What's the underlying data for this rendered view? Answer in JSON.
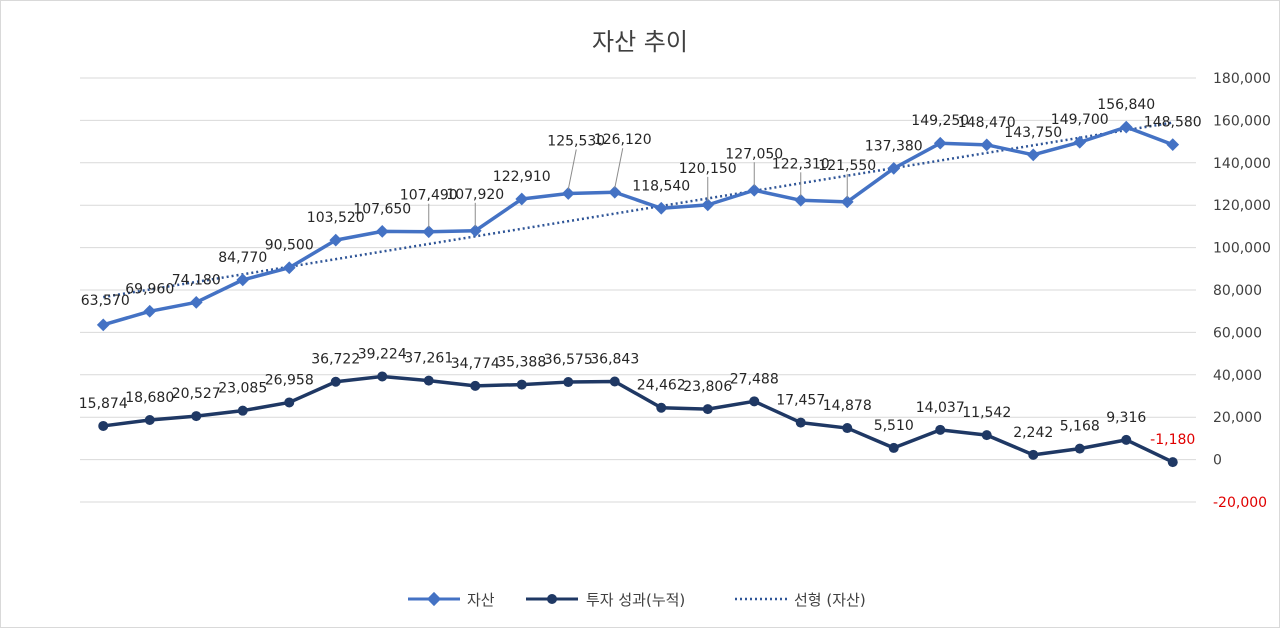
{
  "chart_data": {
    "type": "line",
    "title": "자산 추이",
    "ylim": [
      -20000,
      180000
    ],
    "y_ticks": [
      180000,
      160000,
      140000,
      120000,
      100000,
      80000,
      60000,
      40000,
      20000,
      0,
      -20000
    ],
    "y_tick_labels": [
      "180,000",
      "160,000",
      "140,000",
      "120,000",
      "100,000",
      "80,000",
      "60,000",
      "40,000",
      "20,000",
      "0",
      "-20,000"
    ],
    "y_axis_position": "right",
    "grid": true,
    "legend_position": "bottom",
    "series": [
      {
        "name": "자산",
        "color": "#4472c4",
        "marker": "diamond",
        "values": [
          63570,
          69960,
          74180,
          84770,
          90500,
          103520,
          107650,
          107490,
          107920,
          122910,
          125530,
          126120,
          118540,
          120150,
          127050,
          122310,
          121550,
          137380,
          149250,
          148470,
          143750,
          149700,
          156840,
          148580
        ],
        "labels": [
          "63,570",
          "69,960",
          "74,180",
          "84,770",
          "90,500",
          "103,520",
          "107,650",
          "107,490",
          "107,920",
          "122,910",
          "125,530",
          "126,120",
          "118,540",
          "120,150",
          "127,050",
          "122,310",
          "121,550",
          "137,380",
          "149,250",
          "148,470",
          "143,750",
          "149,700",
          "156,840",
          "148,580"
        ]
      },
      {
        "name": "투자 성과(누적)",
        "color": "#1f3864",
        "marker": "circle",
        "values": [
          15874,
          18680,
          20527,
          23085,
          26958,
          36722,
          39224,
          37261,
          34774,
          35388,
          36575,
          36843,
          24462,
          23806,
          27488,
          17457,
          14878,
          5510,
          14037,
          11542,
          2242,
          5168,
          9316,
          -1180
        ],
        "labels": [
          "15,874",
          "18,680",
          "20,527",
          "23,085",
          "26,958",
          "36,722",
          "39,224",
          "37,261",
          "34,774",
          "35,388",
          "36,575",
          "36,843",
          "24,462",
          "23,806",
          "27,488",
          "17,457",
          "14,878",
          "5,510",
          "14,037",
          "11,542",
          "2,242",
          "5,168",
          "9,316",
          "-1,180"
        ]
      }
    ],
    "trendline": {
      "name": "선형 (자산)",
      "of_series": "자산",
      "type": "linear",
      "color": "#2f5597"
    }
  }
}
